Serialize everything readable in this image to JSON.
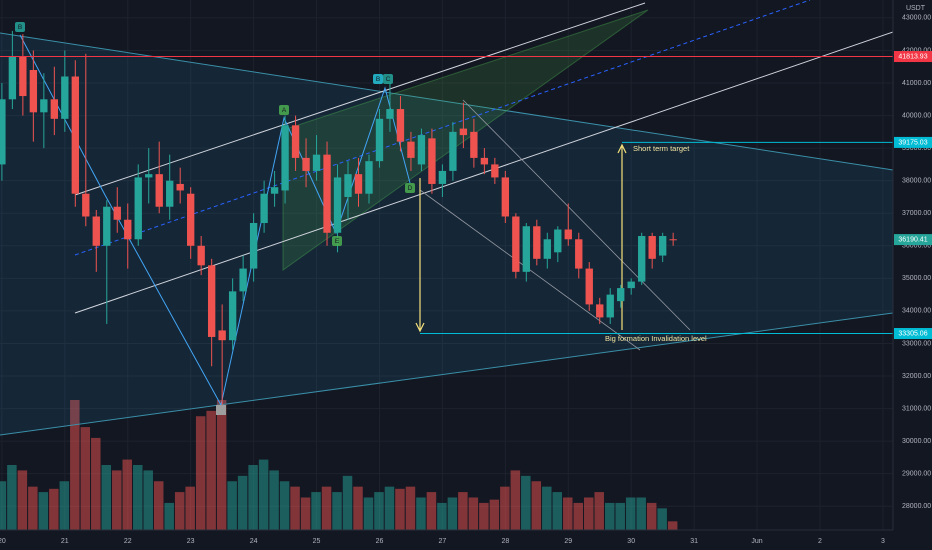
{
  "chart_data": {
    "type": "candlestick",
    "currency": "USDT",
    "up_color": "#26a69a",
    "down_color": "#ef5350",
    "xlim": [
      19.97,
      34.16
    ],
    "xticks": [
      20,
      21,
      22,
      23,
      24,
      25,
      26,
      27,
      28,
      29,
      30,
      31,
      {
        "value": 32,
        "label": "Jun"
      },
      {
        "value": 33,
        "label": "2"
      },
      {
        "value": 34,
        "label": "3"
      }
    ],
    "ylim": [
      27270,
      43550
    ],
    "yticks": [
      {
        "value": 43000,
        "label": "43000.00"
      },
      {
        "value": 42000,
        "label": "42000.00"
      },
      {
        "value": 41000,
        "label": "41000.00"
      },
      {
        "value": 40000,
        "label": "40000.00"
      },
      {
        "value": 39000,
        "label": "39000.00"
      },
      {
        "value": 38000,
        "label": "38000.00"
      },
      {
        "value": 37000,
        "label": "37000.00"
      },
      {
        "value": 36000,
        "label": "36000.00"
      },
      {
        "value": 35000,
        "label": "35000.00"
      },
      {
        "value": 34000,
        "label": "34000.00"
      },
      {
        "value": 33000,
        "label": "33000.00"
      },
      {
        "value": 32000,
        "label": "32000.00"
      },
      {
        "value": 31000,
        "label": "31000.00"
      },
      {
        "value": 30000,
        "label": "30000.00"
      },
      {
        "value": 29000,
        "label": "29000.00"
      },
      {
        "value": 28000,
        "label": "28000.00"
      }
    ],
    "grid": true,
    "x": [
      20,
      20.1667,
      20.3333,
      20.5,
      20.6667,
      20.8333,
      21,
      21.1667,
      21.3333,
      21.5,
      21.6667,
      21.8333,
      22,
      22.1667,
      22.3333,
      22.5,
      22.6667,
      22.8333,
      23,
      23.1667,
      23.3333,
      23.5,
      23.6667,
      23.8333,
      24,
      24.1667,
      24.3333,
      24.5,
      24.6667,
      24.8333,
      25,
      25.1667,
      25.3333,
      25.5,
      25.6667,
      25.8333,
      26,
      26.1667,
      26.3333,
      26.5,
      26.6667,
      26.8333,
      27,
      27.1667,
      27.3333,
      27.5,
      27.6667,
      27.8333,
      28,
      28.1667,
      28.3333,
      28.5,
      28.6667,
      28.8333,
      29,
      29.1667,
      29.3333,
      29.5,
      29.6667,
      29.8333,
      30,
      30.1667,
      30.3333,
      30.5,
      30.6667
    ],
    "open": [
      38500,
      40500,
      41800,
      41400,
      40100,
      40500,
      39900,
      41200,
      37600,
      36900,
      36000,
      37200,
      36800,
      36200,
      38100,
      38200,
      37200,
      37900,
      37600,
      36000,
      35400,
      33400,
      33100,
      34600,
      35300,
      36700,
      37600,
      37700,
      39700,
      38700,
      38300,
      38800,
      36400,
      37500,
      38200,
      37600,
      38600,
      39900,
      40200,
      39200,
      38500,
      39300,
      37900,
      38300,
      39600,
      39500,
      38700,
      38500,
      38100,
      36900,
      35200,
      36600,
      35600,
      35800,
      36500,
      36200,
      35300,
      34200,
      33800,
      34300,
      34700,
      34900,
      36300,
      35700,
      36200
    ],
    "high": [
      41000,
      42600,
      42500,
      42000,
      41300,
      41500,
      42000,
      41700,
      41900,
      37100,
      37400,
      37800,
      37300,
      38500,
      39000,
      39200,
      38800,
      38400,
      37800,
      36300,
      35600,
      34200,
      35000,
      35700,
      37000,
      38000,
      38300,
      40000,
      40000,
      39300,
      39400,
      39200,
      38500,
      38600,
      38700,
      38800,
      40200,
      41000,
      40600,
      39500,
      39600,
      39600,
      38500,
      39800,
      40400,
      39900,
      39000,
      38700,
      38300,
      37000,
      36700,
      36800,
      36400,
      36600,
      37300,
      36400,
      35500,
      34400,
      34700,
      34800,
      35000,
      36400,
      36400,
      36400,
      36400
    ],
    "low": [
      38000,
      40200,
      40000,
      39200,
      39000,
      39400,
      39500,
      37200,
      36600,
      35200,
      33600,
      36400,
      35300,
      36000,
      37300,
      37000,
      36800,
      37300,
      35600,
      35100,
      32300,
      31100,
      32800,
      34300,
      34900,
      36400,
      37200,
      37300,
      38300,
      37800,
      38000,
      36000,
      35800,
      36800,
      37200,
      37300,
      38400,
      39500,
      38900,
      38300,
      38300,
      37600,
      37500,
      38000,
      39000,
      38400,
      38200,
      37900,
      36700,
      35000,
      34900,
      35400,
      35300,
      35500,
      36000,
      35000,
      34000,
      33600,
      33600,
      34100,
      34500,
      34800,
      35300,
      35500,
      36000
    ],
    "close": [
      40500,
      41800,
      40600,
      40100,
      40500,
      39900,
      41200,
      37600,
      36900,
      36000,
      37200,
      36800,
      36200,
      38100,
      38200,
      37200,
      38000,
      37700,
      36000,
      35400,
      33200,
      33100,
      34600,
      35300,
      36700,
      37600,
      37800,
      39700,
      38700,
      38300,
      38800,
      36400,
      38100,
      38200,
      37600,
      38600,
      39900,
      40200,
      39200,
      38700,
      39400,
      37900,
      38300,
      39500,
      39400,
      38700,
      38500,
      38100,
      36900,
      35200,
      36600,
      35600,
      36200,
      36500,
      36200,
      35300,
      34200,
      33800,
      34500,
      34700,
      34900,
      36300,
      35600,
      36300,
      36190.41
    ],
    "volume": [
      45,
      60,
      55,
      40,
      35,
      38,
      45,
      120,
      95,
      85,
      60,
      55,
      65,
      60,
      55,
      45,
      25,
      35,
      40,
      105,
      110,
      120,
      45,
      50,
      60,
      65,
      55,
      45,
      40,
      30,
      35,
      40,
      35,
      50,
      40,
      30,
      35,
      40,
      38,
      40,
      30,
      35,
      25,
      30,
      35,
      30,
      25,
      28,
      40,
      55,
      50,
      45,
      40,
      35,
      30,
      25,
      30,
      35,
      25,
      25,
      30,
      30,
      25,
      20,
      8
    ],
    "price_lines": [
      {
        "value": 41813.93,
        "color": "#f23645"
      },
      {
        "value": 39175.03,
        "color": "#00bcd4"
      },
      {
        "value": 36190.41,
        "color": "#26a69a"
      },
      {
        "value": 33305.06,
        "color": "#00bcd4"
      }
    ],
    "pattern_labels": [
      "B",
      "A",
      "B",
      "C",
      "D",
      "E"
    ],
    "annotations": [
      "Short term target",
      "Big formation Invalidation level"
    ]
  }
}
